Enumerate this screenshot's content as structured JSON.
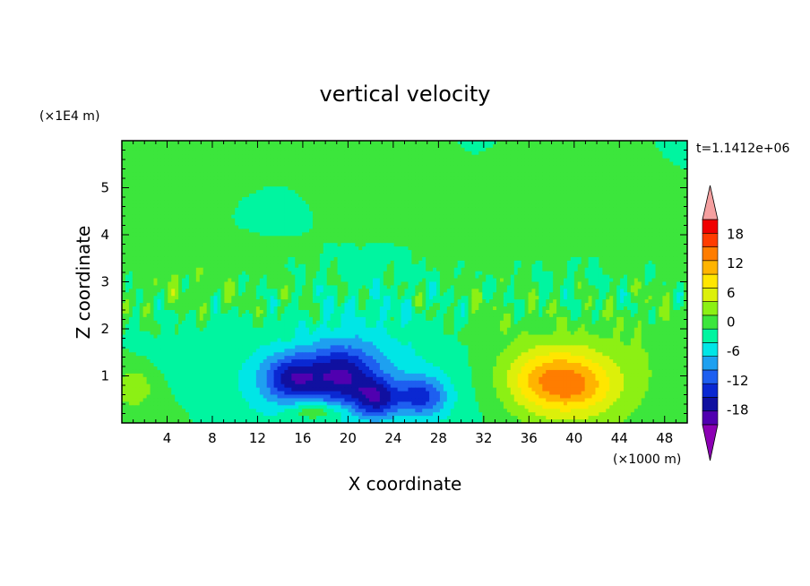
{
  "chart_data": {
    "type": "heatmap",
    "title": "vertical velocity",
    "xlabel": "X coordinate",
    "ylabel": "Z coordinate",
    "x_scale_label": "(×1000 m)",
    "y_scale_label": "(×1E4 m)",
    "time_label": "t=1.1412e+06",
    "xlim": [
      0,
      50
    ],
    "ylim": [
      0,
      6
    ],
    "x_ticks": [
      4,
      8,
      12,
      16,
      20,
      24,
      28,
      32,
      36,
      40,
      44,
      48
    ],
    "y_ticks": [
      1,
      2,
      3,
      4,
      5
    ],
    "colorbar": {
      "levels": [
        -21,
        -18,
        -15,
        -12,
        -9,
        -6,
        -3,
        0,
        3,
        6,
        9,
        12,
        15,
        18,
        21
      ],
      "tick_labels": [
        "-18",
        "-12",
        "-6",
        "0",
        "6",
        "12",
        "18"
      ],
      "tick_values": [
        -18,
        -12,
        -6,
        0,
        6,
        12,
        18
      ],
      "colors": [
        "#5000b0",
        "#1010a0",
        "#0a28d2",
        "#1e5ff0",
        "#1ea0f0",
        "#00e6e6",
        "#00f5a0",
        "#3ce63c",
        "#8cf014",
        "#dcf00a",
        "#ffe600",
        "#ffb400",
        "#ff7d00",
        "#ff3c00",
        "#f00000"
      ],
      "under_color": "#8c00b4",
      "over_color": "#f5a0a0"
    },
    "features": [
      {
        "x": 15,
        "z": 0.95,
        "value": -12,
        "sx": 1.8,
        "sz": 0.35
      },
      {
        "x": 19.5,
        "z": 1.0,
        "value": -13,
        "sx": 2.2,
        "sz": 0.45
      },
      {
        "x": 22.5,
        "z": 0.5,
        "value": -12,
        "sx": 1.4,
        "sz": 0.3
      },
      {
        "x": 26.5,
        "z": 0.55,
        "value": -11,
        "sx": 1.6,
        "sz": 0.3
      },
      {
        "x": 20,
        "z": 1.0,
        "value": -5,
        "sx": 8.0,
        "sz": 0.9
      },
      {
        "x": 17,
        "z": 0.25,
        "value": 7,
        "sx": 1.8,
        "sz": 0.15
      },
      {
        "x": 38.5,
        "z": 0.9,
        "value": 12,
        "sx": 3.0,
        "sz": 0.45
      },
      {
        "x": 40.5,
        "z": 0.7,
        "value": 2,
        "sx": 2.0,
        "sz": 0.25
      },
      {
        "x": 40,
        "z": 0.95,
        "value": 5,
        "sx": 6.5,
        "sz": 1.0
      },
      {
        "x": 1,
        "z": 0.75,
        "value": 6,
        "sx": 1.2,
        "sz": 0.3
      },
      {
        "x": 10,
        "z": 5.6,
        "value": 1.5,
        "sx": 10.0,
        "sz": 0.5
      },
      {
        "x": 40,
        "z": 4.8,
        "value": 1.8,
        "sx": 10.0,
        "sz": 0.7
      },
      {
        "x": 5,
        "z": 3.0,
        "value": 3,
        "sx": 4.0,
        "sz": 0.5
      }
    ]
  }
}
